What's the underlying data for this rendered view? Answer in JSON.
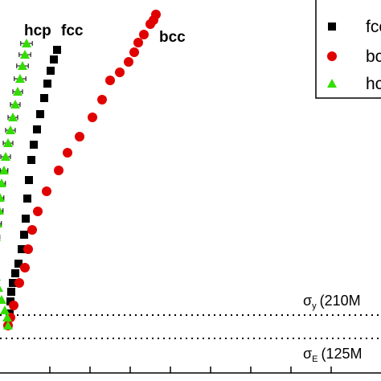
{
  "chart_data": {
    "type": "scatter",
    "series": [
      {
        "name": "fcc",
        "marker": "square",
        "color": "#000000",
        "points": [
          [
            0,
            380
          ],
          [
            1,
            365
          ],
          [
            2,
            353
          ],
          [
            4,
            342
          ],
          [
            7,
            330
          ],
          [
            11,
            318
          ],
          [
            15,
            300
          ],
          [
            18,
            282
          ],
          [
            20,
            262
          ],
          [
            22,
            237
          ],
          [
            24,
            214
          ],
          [
            27,
            189
          ],
          [
            30,
            170
          ],
          [
            34,
            151
          ],
          [
            38,
            132
          ],
          [
            43,
            112
          ],
          [
            47,
            94
          ],
          [
            51,
            78
          ],
          [
            55,
            64
          ],
          [
            59,
            52
          ]
        ]
      },
      {
        "name": "bcc",
        "marker": "circle",
        "color": "#e00000",
        "points": [
          [
            -2,
            395
          ],
          [
            1,
            385
          ],
          [
            5,
            370
          ],
          [
            12,
            342
          ],
          [
            19,
            323
          ],
          [
            23,
            300
          ],
          [
            28,
            276
          ],
          [
            35,
            253
          ],
          [
            46,
            228
          ],
          [
            61,
            202
          ],
          [
            72,
            180
          ],
          [
            87,
            160
          ],
          [
            103,
            136
          ],
          [
            115,
            114
          ],
          [
            125,
            90
          ],
          [
            137,
            80
          ],
          [
            148,
            67
          ],
          [
            155,
            55
          ],
          [
            160,
            43
          ],
          [
            167,
            33
          ],
          [
            175,
            20
          ],
          [
            179,
            15
          ],
          [
            182,
            8
          ]
        ]
      },
      {
        "name": "hcp",
        "marker": "triangle",
        "color": "#33dd00",
        "points": [
          [
            -2,
            395
          ],
          [
            -3,
            385
          ],
          [
            -6,
            376
          ],
          [
            -10,
            363
          ],
          [
            -14,
            348
          ],
          [
            -17,
            334
          ],
          [
            -19,
            318
          ],
          [
            -19,
            302
          ],
          [
            -17,
            285
          ],
          [
            -15,
            268
          ],
          [
            -13,
            252
          ],
          [
            -12,
            236
          ],
          [
            -10,
            218
          ],
          [
            -7,
            202
          ],
          [
            -5,
            185
          ],
          [
            -2,
            168
          ],
          [
            1,
            152
          ],
          [
            4,
            136
          ],
          [
            7,
            120
          ],
          [
            10,
            104
          ],
          [
            13,
            88
          ],
          [
            16,
            72
          ],
          [
            19,
            58
          ],
          [
            21,
            44
          ]
        ],
        "xerr": [
          0,
          0,
          0,
          0,
          0,
          0,
          0,
          4,
          4,
          4,
          4,
          4,
          4,
          4,
          5,
          5,
          5,
          5,
          5,
          5,
          6,
          6,
          6,
          6
        ]
      }
    ],
    "annotations": [
      {
        "text": "hcp",
        "x": 18,
        "y": 6
      },
      {
        "text": "fcc",
        "x": 64,
        "y": 6
      },
      {
        "text": "bcc",
        "x": 186,
        "y": 14
      }
    ],
    "hlines": [
      {
        "y": 392,
        "sym": "σ",
        "sub": "y",
        "paren": "(210M"
      },
      {
        "y": 421,
        "sym": "σ",
        "sub": "E",
        "paren": "(125M"
      }
    ],
    "legend_placement": "top-right",
    "xlim": [
      -30,
      230
    ],
    "ylim": [
      0,
      465
    ]
  }
}
